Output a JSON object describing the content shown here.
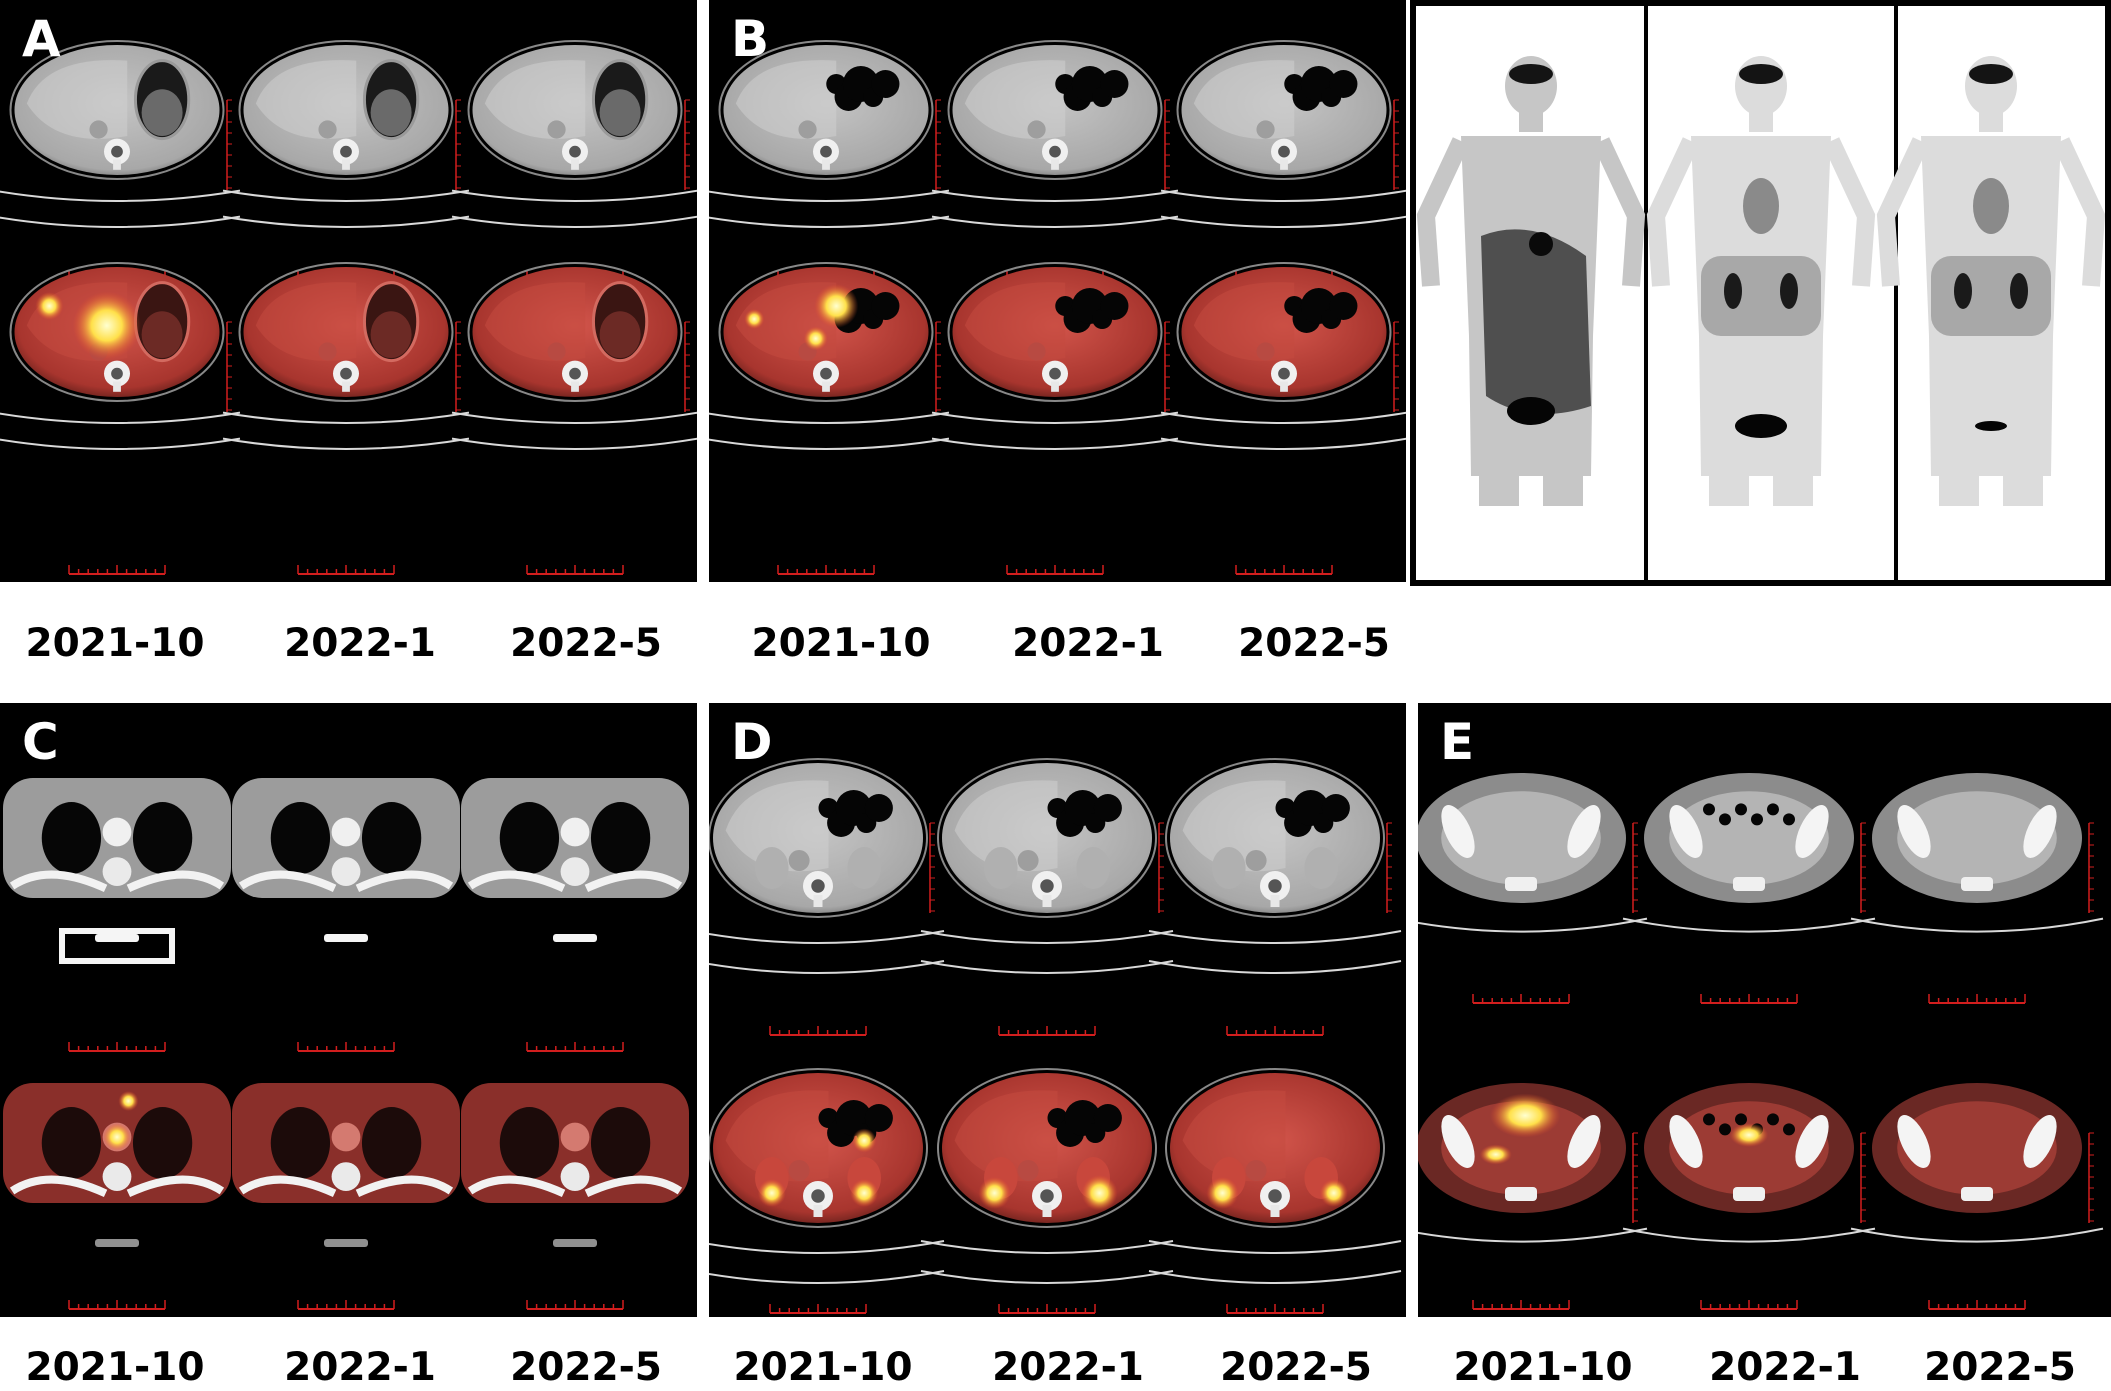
{
  "panels": {
    "A": {
      "letter": "A"
    },
    "B": {
      "letter": "B"
    },
    "C": {
      "letter": "C"
    },
    "D": {
      "letter": "D"
    },
    "E": {
      "letter": "E"
    }
  },
  "dates": [
    "2021-10",
    "2022-1",
    "2022-5"
  ],
  "colors": {
    "background": "#000000",
    "ct_tissue": "#b9b9b9",
    "pet_overlay": "#c0342c",
    "scale_bar": "#d21e1e",
    "label_text": "#000000"
  }
}
